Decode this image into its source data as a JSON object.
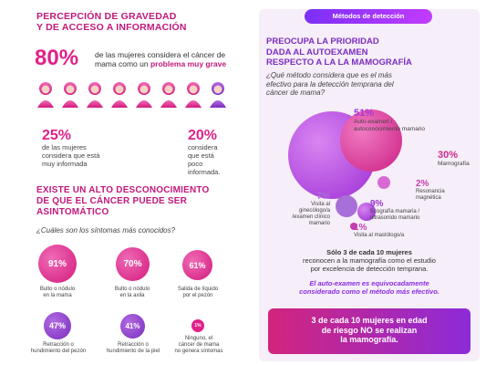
{
  "left": {
    "section1_title_line1": "PERCEPCIÓN DE GRAVEDAD",
    "section1_title_line2": "Y DE ACCESO A INFORMACIÓN",
    "stat80_value": "80%",
    "stat80_text_line1": "de las mujeres considera el cáncer de",
    "stat80_text_line2_pre": "mama como un ",
    "stat80_text_line2_bold": "problema muy grave",
    "stat25_value": "25%",
    "stat25_text": [
      "de las mujeres",
      "considera que está",
      "muy informada"
    ],
    "stat20_value": "20%",
    "stat20_text": [
      "considera",
      "que está",
      "poco",
      "informada."
    ],
    "section2_title": [
      "EXISTE UN ALTO DESCONOCIMIENTO",
      "DE QUE EL CÁNCER PUEDE SER",
      "ASINTOMÁTICO"
    ],
    "symptoms_question": "¿Cuáles son los síntomas más conocidos?",
    "symptoms": [
      {
        "pct": "91%",
        "label": [
          "Bulto o nódulo",
          "en la mama"
        ],
        "size": 0.91
      },
      {
        "pct": "70%",
        "label": [
          "Bulto o nódulo",
          "en la axila"
        ],
        "size": 0.7
      },
      {
        "pct": "61%",
        "label": [
          "Salida de líquido",
          "por el pezón"
        ],
        "size": 0.61
      },
      {
        "pct": "47%",
        "label": [
          "Retracción o",
          "hundimiento del pezón"
        ],
        "size": 0.47
      },
      {
        "pct": "41%",
        "label": [
          "Retracción o",
          "hundimiento de la piel"
        ],
        "size": 0.41
      },
      {
        "pct": "1%",
        "label": [
          "Ninguno, el",
          "cáncer de mama",
          "no genera síntomas"
        ],
        "size": 0.01
      }
    ]
  },
  "right": {
    "badge": "Métodos de detección",
    "title": [
      "PREOCUPA LA PRIORIDAD",
      "DADA  AL AUTOEXAMEN",
      "RESPECTO A LA LA MAMOGRAFÍA"
    ],
    "question": [
      "¿Qué método considera que es el más",
      "efectivo para la detección temprana del",
      "cáncer de mama?"
    ],
    "methods": [
      {
        "pct": "51%",
        "label": [
          "Auto-examen /",
          "autoconocimiento mamario"
        ]
      },
      {
        "pct": "30%",
        "label": [
          "Mamografía"
        ]
      },
      {
        "pct": "2%",
        "label": [
          "Resonancia",
          "magnética"
        ]
      },
      {
        "pct": "7%",
        "label": [
          "Visita al",
          "ginecólogo/a",
          "/examen clínico",
          "mamario"
        ]
      },
      {
        "pct": "9%",
        "label": [
          "Ecografía mamaria /",
          "ultrasonido mamario"
        ]
      },
      {
        "pct": "1%",
        "label": [
          "Visita al mastólogo/a"
        ]
      }
    ],
    "note_bold": "Sólo 3 de cada 10 mujeres",
    "note_rest": [
      "reconocen a la mamografía como el estudio",
      "por excelencia de detección temprana."
    ],
    "note2": [
      "El auto-examen es equivocadamente",
      "considerado como el método más efectivo."
    ],
    "cta": [
      "3 de cada 10 mujeres en edad",
      "de riesgo NO se realizan",
      "la mamografía."
    ]
  }
}
